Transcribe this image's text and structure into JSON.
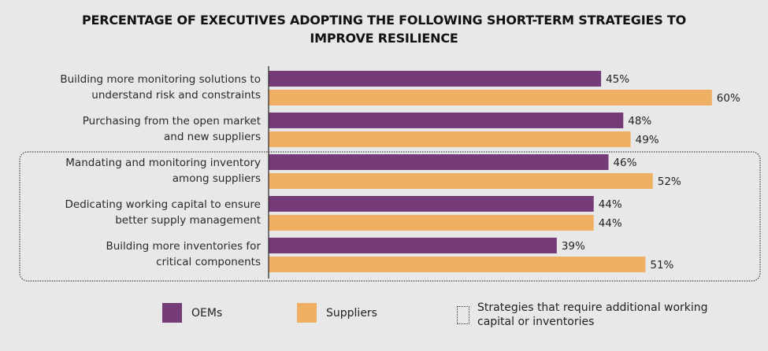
{
  "chart_data": {
    "type": "bar",
    "orientation": "horizontal",
    "title": "PERCENTAGE OF EXECUTIVES ADOPTING THE FOLLOWING SHORT-TERM STRATEGIES TO IMPROVE RESILIENCE",
    "title_lines": [
      "PERCENTAGE OF EXECUTIVES ADOPTING THE FOLLOWING SHORT-TERM STRATEGIES TO",
      "IMPROVE RESILIENCE"
    ],
    "categories": [
      [
        "Building more monitoring solutions to",
        "understand risk and constraints"
      ],
      [
        "Purchasing from the open market",
        "and new suppliers"
      ],
      [
        "Mandating and monitoring inventory",
        "among suppliers"
      ],
      [
        "Dedicating working capital to ensure",
        "better supply management"
      ],
      [
        "Building more inventories for",
        "critical components"
      ]
    ],
    "series": [
      {
        "name": "OEMs",
        "color": "#753a78",
        "values": [
          45,
          48,
          46,
          44,
          39
        ]
      },
      {
        "name": "Suppliers",
        "color": "#f0b064",
        "values": [
          60,
          49,
          52,
          44,
          51
        ]
      }
    ],
    "value_suffix": "%",
    "xlim": [
      0,
      67
    ],
    "grid": false,
    "highlight_group": {
      "categories": [
        2,
        3,
        4
      ],
      "label": "Strategies that require additional working capital or inventories"
    },
    "legend": {
      "placement": "bottom",
      "items": [
        {
          "label": "OEMs",
          "color": "#753a78",
          "type": "swatch"
        },
        {
          "label": "Suppliers",
          "color": "#f0b064",
          "type": "swatch"
        },
        {
          "label_lines": [
            "Strategies that require additional working",
            "capital or inventories"
          ],
          "type": "dotted-box"
        }
      ]
    }
  }
}
